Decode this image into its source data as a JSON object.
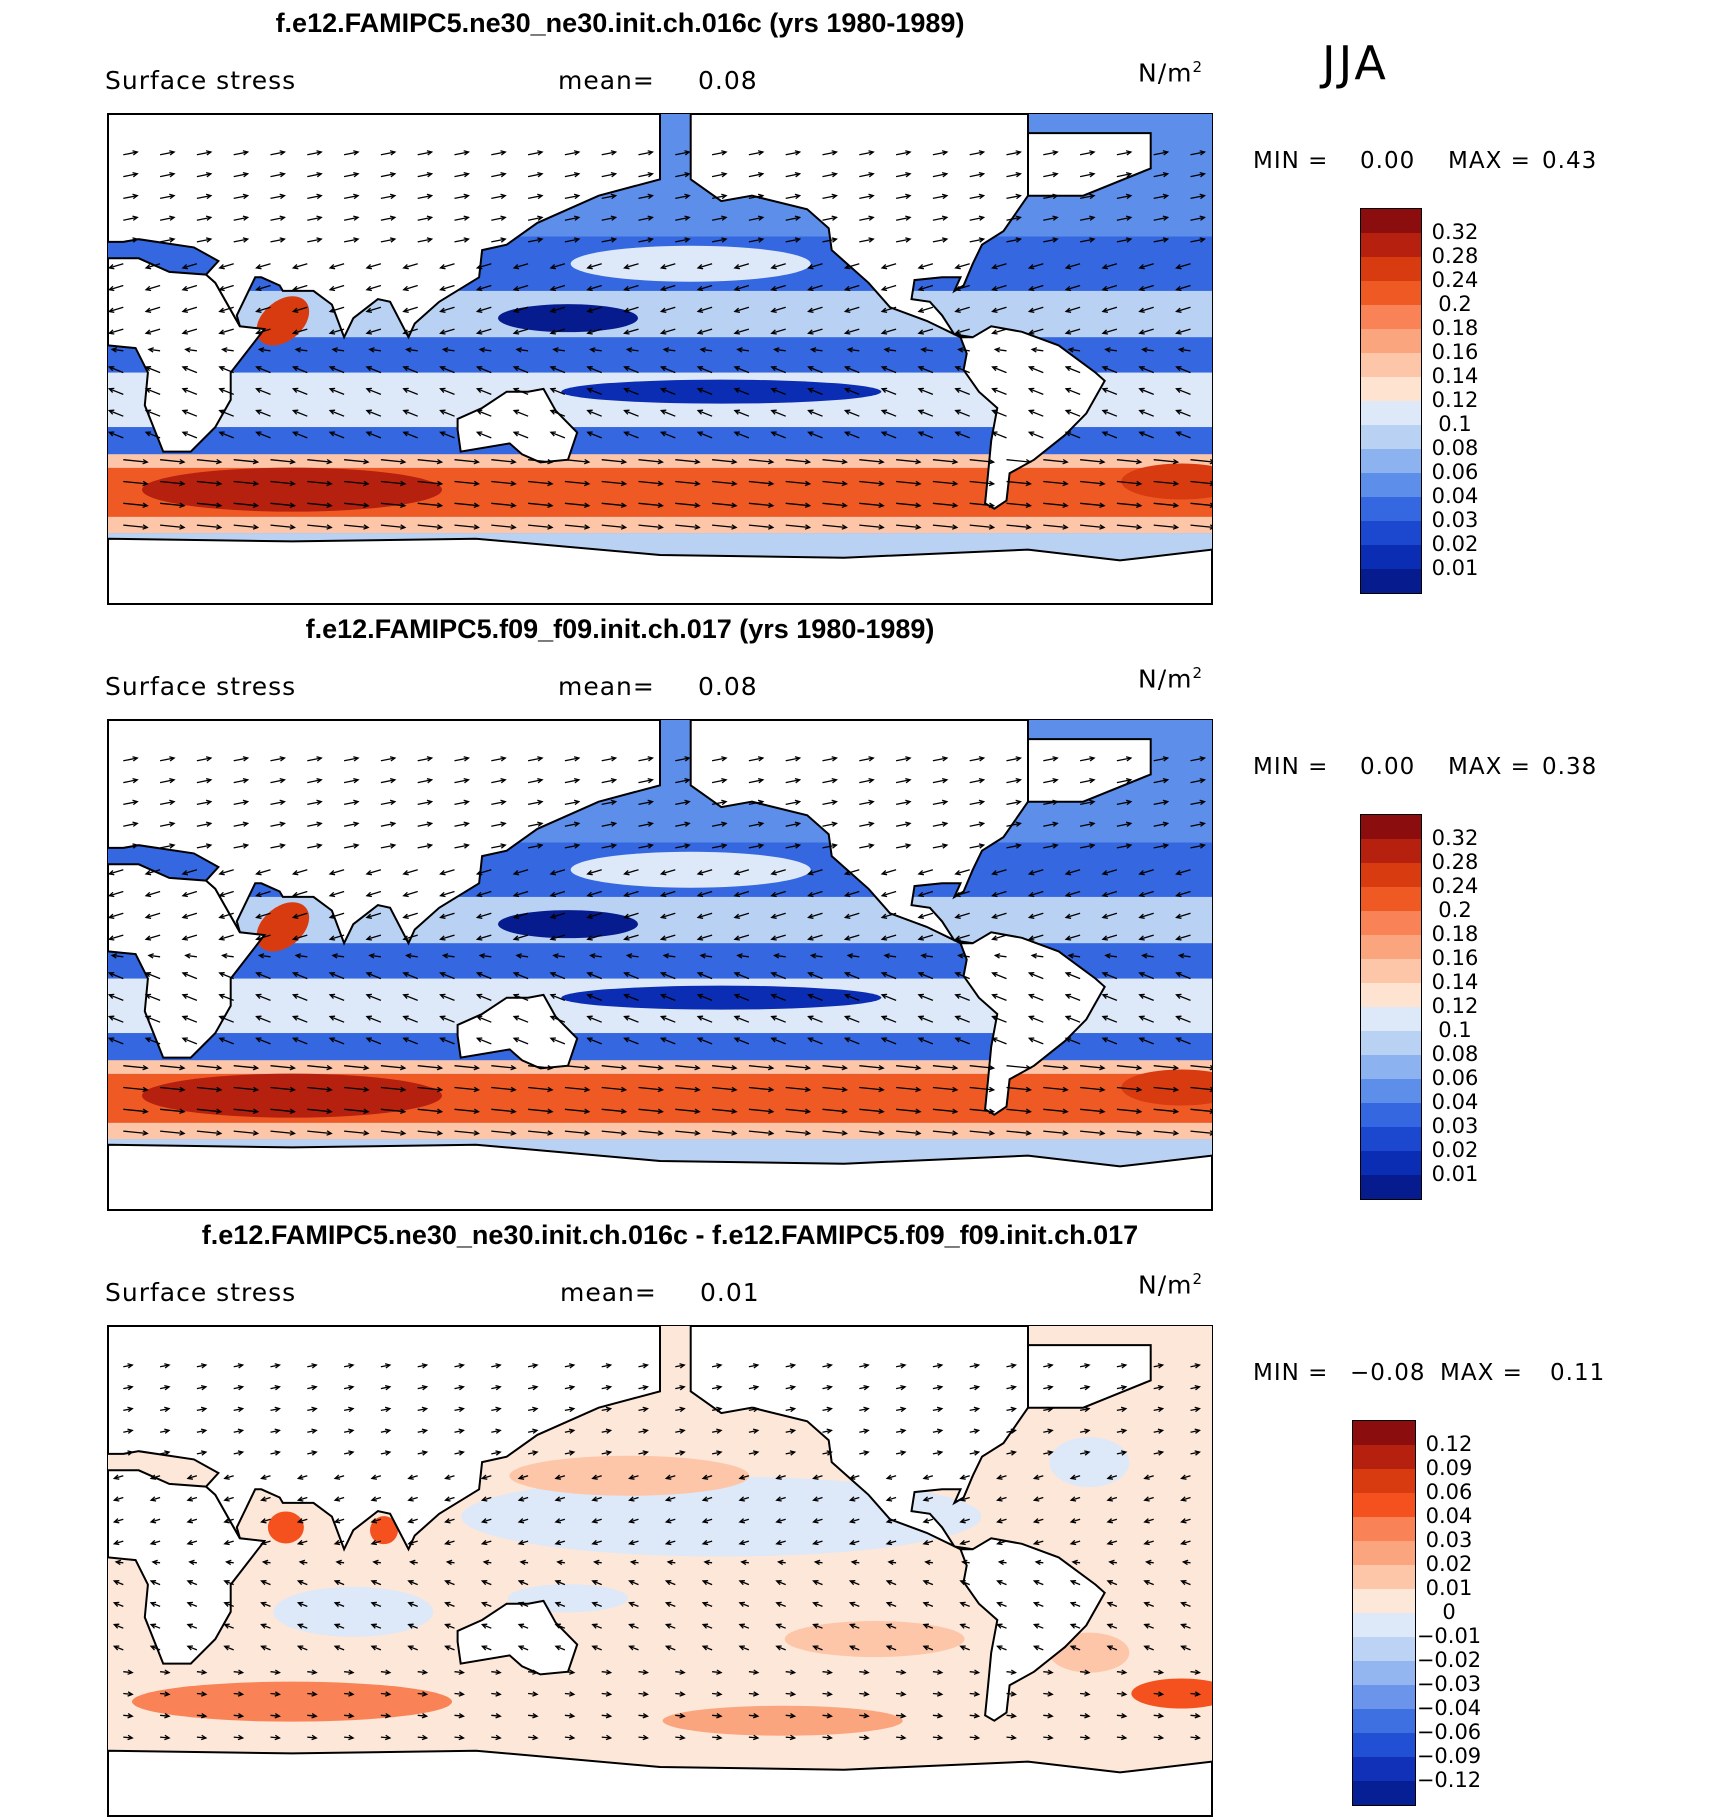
{
  "season": "JJA",
  "panels": [
    {
      "title": "f.e12.FAMIPC5.ne30_ne30.init.ch.016c (yrs 1980-1989)",
      "variable": "Surface stress",
      "mean_label": "mean=",
      "mean_value": "0.08",
      "units": "N/m",
      "units_sup": "2",
      "min_label": "MIN =",
      "min_value": "0.00",
      "max_label": "MAX =",
      "max_value": "0.43",
      "colorbar": {
        "labels": [
          "0.32",
          "0.28",
          "0.24",
          "0.2",
          "0.18",
          "0.16",
          "0.14",
          "0.12",
          "0.1",
          "0.08",
          "0.06",
          "0.04",
          "0.03",
          "0.02",
          "0.01"
        ],
        "colors": [
          "#8c0d0d",
          "#b5200f",
          "#d93b11",
          "#ef5a24",
          "#f98356",
          "#fba57f",
          "#fdc6a8",
          "#fde3d0",
          "#dde8f8",
          "#b9d2f3",
          "#8cb2ef",
          "#5d8ee9",
          "#3568e0",
          "#1b48cf",
          "#0b2db3",
          "#061c8e"
        ]
      }
    },
    {
      "title": "f.e12.FAMIPC5.f09_f09.init.ch.017 (yrs 1980-1989)",
      "variable": "Surface stress",
      "mean_label": "mean=",
      "mean_value": "0.08",
      "units": "N/m",
      "units_sup": "2",
      "min_label": "MIN =",
      "min_value": "0.00",
      "max_label": "MAX =",
      "max_value": "0.38",
      "colorbar": {
        "labels": [
          "0.32",
          "0.28",
          "0.24",
          "0.2",
          "0.18",
          "0.16",
          "0.14",
          "0.12",
          "0.1",
          "0.08",
          "0.06",
          "0.04",
          "0.03",
          "0.02",
          "0.01"
        ],
        "colors": [
          "#8c0d0d",
          "#b5200f",
          "#d93b11",
          "#ef5a24",
          "#f98356",
          "#fba57f",
          "#fdc6a8",
          "#fde3d0",
          "#dde8f8",
          "#b9d2f3",
          "#8cb2ef",
          "#5d8ee9",
          "#3568e0",
          "#1b48cf",
          "#0b2db3",
          "#061c8e"
        ]
      }
    },
    {
      "title": "f.e12.FAMIPC5.ne30_ne30.init.ch.016c - f.e12.FAMIPC5.f09_f09.init.ch.017",
      "variable": "Surface stress",
      "mean_label": "mean=",
      "mean_value": "0.01",
      "units": "N/m",
      "units_sup": "2",
      "min_label": "MIN =",
      "min_value": "−0.08",
      "max_label": "MAX =",
      "max_value": "0.11",
      "colorbar": {
        "labels": [
          "0.12",
          "0.09",
          "0.06",
          "0.04",
          "0.03",
          "0.02",
          "0.01",
          "0",
          "−0.01",
          "−0.02",
          "−0.03",
          "−0.04",
          "−0.06",
          "−0.09",
          "−0.12"
        ],
        "colors": [
          "#8c0d0d",
          "#b5200f",
          "#d93b11",
          "#f4511e",
          "#f98356",
          "#fba57f",
          "#fdc6a8",
          "#fde7d8",
          "#dde8f8",
          "#bcd3f5",
          "#94b6f0",
          "#6a95ea",
          "#3f70e2",
          "#2150d4",
          "#1132b8",
          "#071f94"
        ]
      }
    }
  ]
}
